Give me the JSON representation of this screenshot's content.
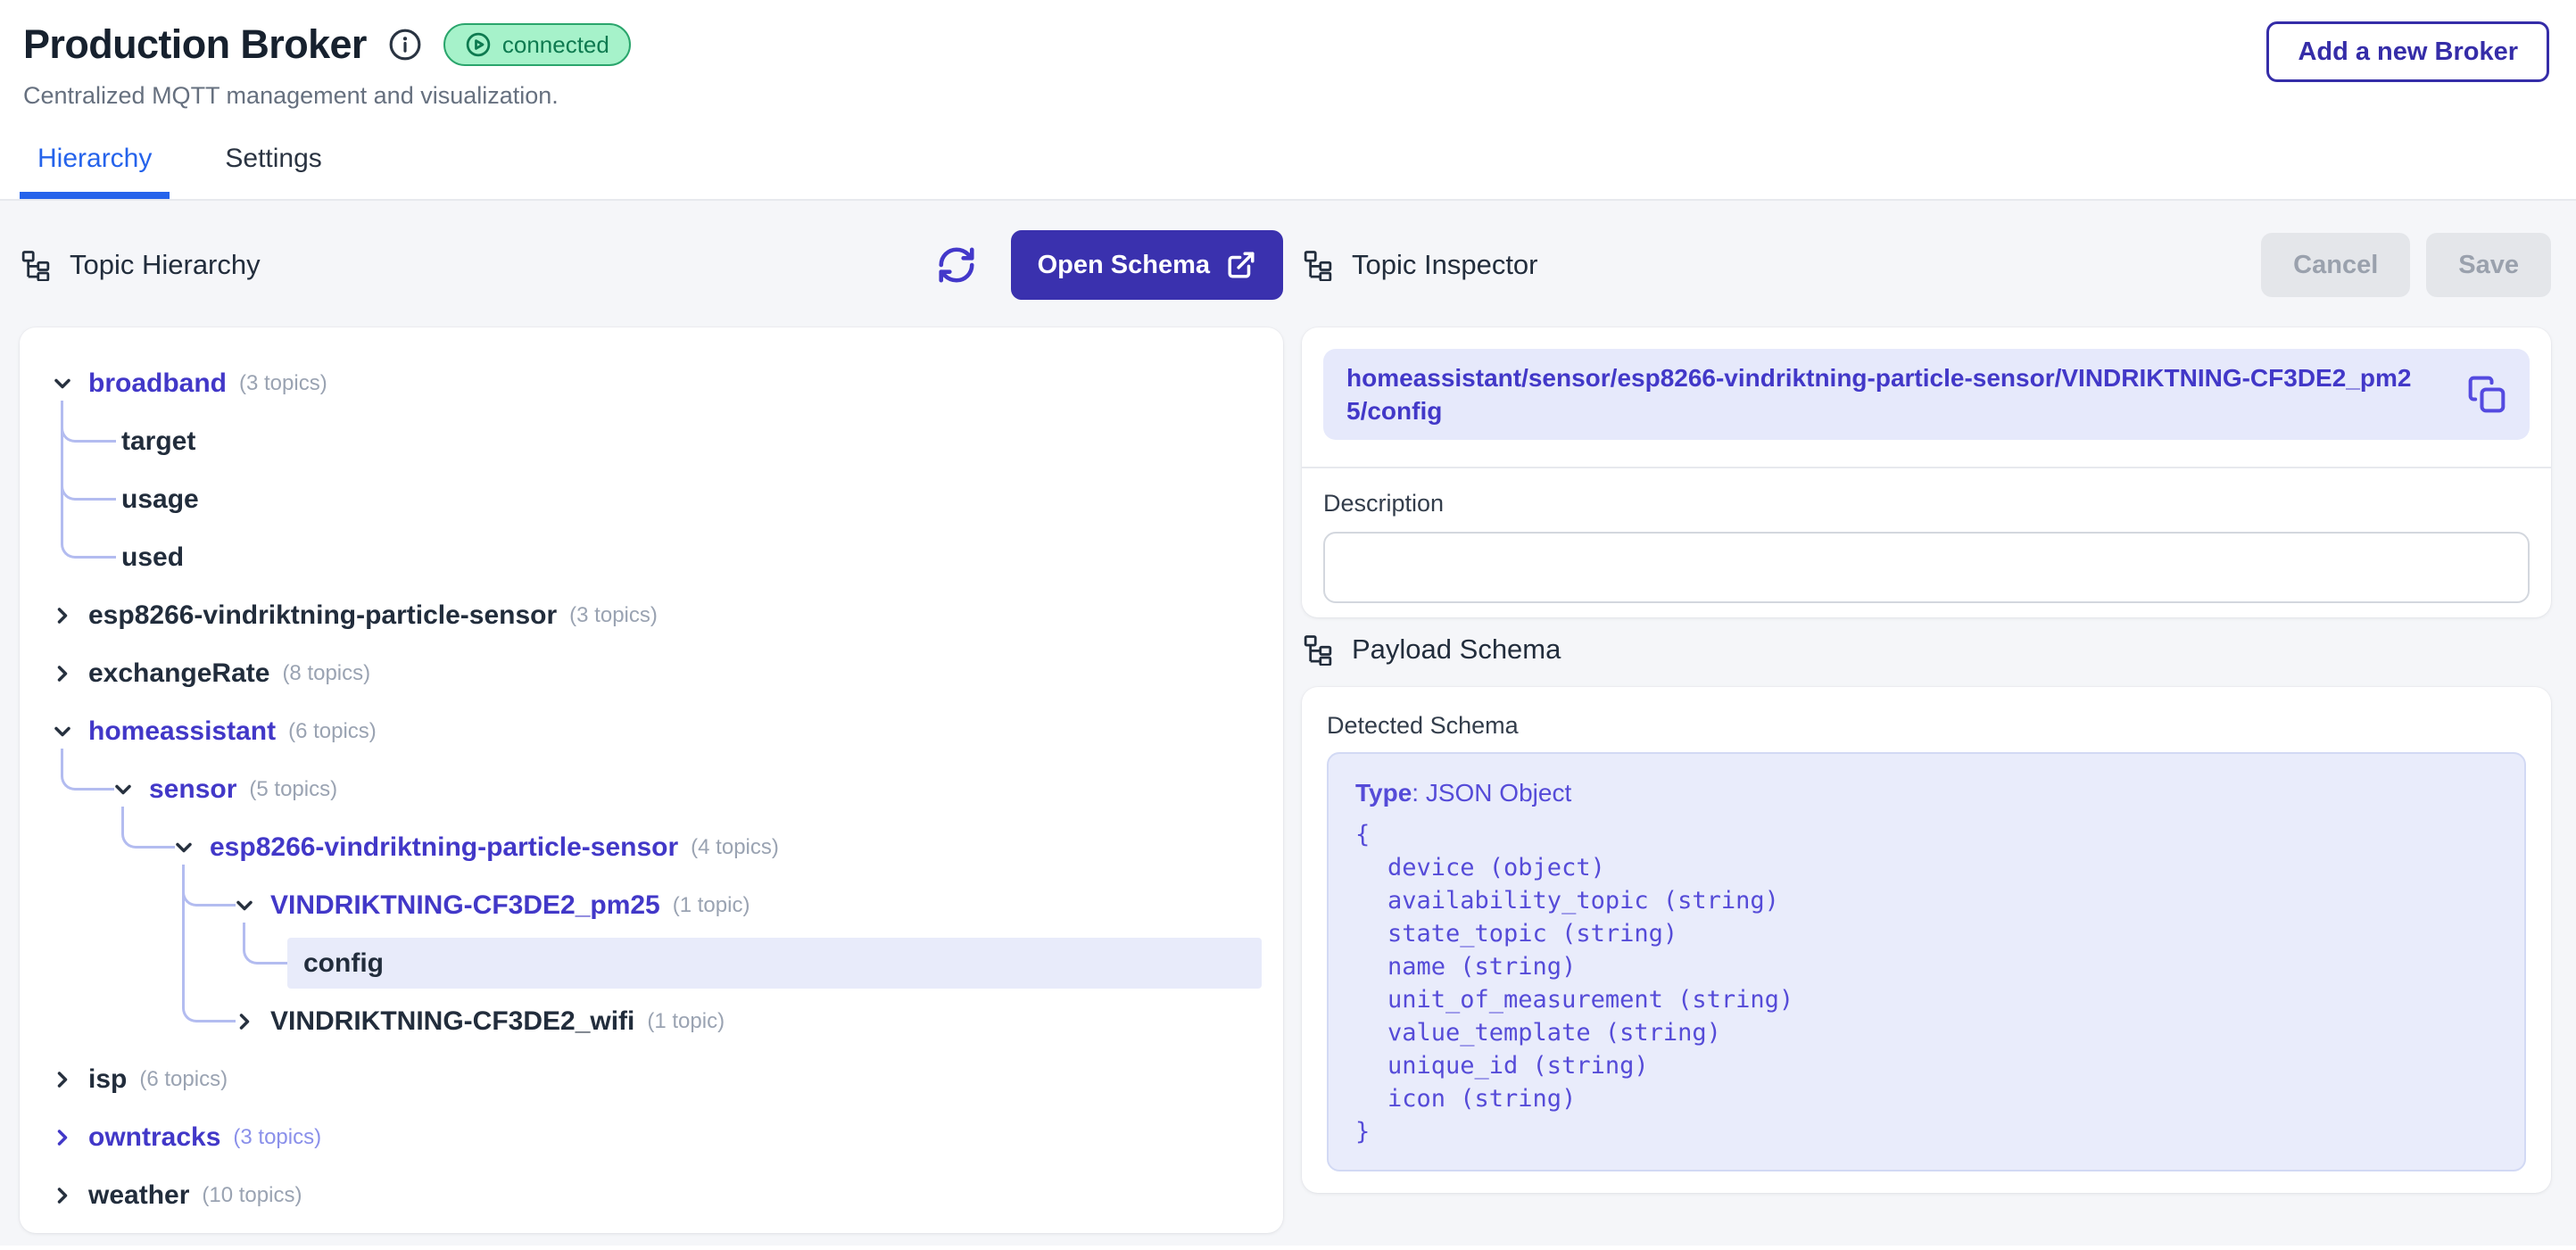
{
  "header": {
    "title": "Production Broker",
    "status_badge": "connected",
    "subtitle": "Centralized MQTT management and visualization.",
    "add_broker_button": "Add a new Broker"
  },
  "tabs": [
    {
      "label": "Hierarchy",
      "active": true
    },
    {
      "label": "Settings",
      "active": false
    }
  ],
  "hierarchy_panel": {
    "title": "Topic Hierarchy",
    "open_schema_button": "Open Schema",
    "tree": [
      {
        "label": "broadband",
        "count": "(3 topics)",
        "level": 0,
        "state": "expanded",
        "active": true
      },
      {
        "label": "target",
        "level": 1,
        "state": "leaf"
      },
      {
        "label": "usage",
        "level": 1,
        "state": "leaf"
      },
      {
        "label": "used",
        "level": 1,
        "state": "leaf"
      },
      {
        "label": "esp8266-vindriktning-particle-sensor",
        "count": "(3 topics)",
        "level": 0,
        "state": "collapsed"
      },
      {
        "label": "exchangeRate",
        "count": "(8 topics)",
        "level": 0,
        "state": "collapsed"
      },
      {
        "label": "homeassistant",
        "count": "(6 topics)",
        "level": 0,
        "state": "expanded",
        "active": true
      },
      {
        "label": "sensor",
        "count": "(5 topics)",
        "level": 1,
        "state": "expanded",
        "active": true
      },
      {
        "label": "esp8266-vindriktning-particle-sensor",
        "count": "(4 topics)",
        "level": 2,
        "state": "expanded",
        "active": true
      },
      {
        "label": "VINDRIKTNING-CF3DE2_pm25",
        "count": "(1 topic)",
        "level": 3,
        "state": "expanded",
        "active": true
      },
      {
        "label": "config",
        "level": 4,
        "state": "leaf",
        "selected": true
      },
      {
        "label": "VINDRIKTNING-CF3DE2_wifi",
        "count": "(1 topic)",
        "level": 3,
        "state": "collapsed"
      },
      {
        "label": "isp",
        "count": "(6 topics)",
        "level": 0,
        "state": "collapsed"
      },
      {
        "label": "owntracks",
        "count": "(3 topics)",
        "level": 0,
        "state": "collapsed",
        "active": true,
        "hover": true
      },
      {
        "label": "weather",
        "count": "(10 topics)",
        "level": 0,
        "state": "collapsed"
      }
    ]
  },
  "inspector_panel": {
    "title": "Topic Inspector",
    "cancel_button": "Cancel",
    "save_button": "Save",
    "topic_path": "homeassistant/sensor/esp8266-vindriktning-particle-sensor/VINDRIKTNING-CF3DE2_pm25/config",
    "description_label": "Description",
    "description_value": ""
  },
  "schema_panel": {
    "title": "Payload Schema",
    "detected_label": "Detected Schema",
    "type_bold": "Type",
    "type_rest": ": JSON Object",
    "open_brace": "{",
    "close_brace": "}",
    "fields": [
      "device (object)",
      "availability_topic (string)",
      "state_topic (string)",
      "name (string)",
      "unit_of_measurement (string)",
      "value_template (string)",
      "unique_id (string)",
      "icon (string)"
    ]
  },
  "colors": {
    "accent_indigo": "#3a31ae",
    "tree_active_indigo": "#4238c8",
    "schema_text_indigo": "#554bd8",
    "active_tab_blue": "#2563eb",
    "badge_green_bg": "#a6f2ca",
    "badge_green_border": "#2aa56c",
    "badge_green_text": "#0e7a50",
    "selected_row_bg": "#e8ebfa",
    "connector": "#b3bcf0",
    "content_bg": "#f5f6f9"
  }
}
